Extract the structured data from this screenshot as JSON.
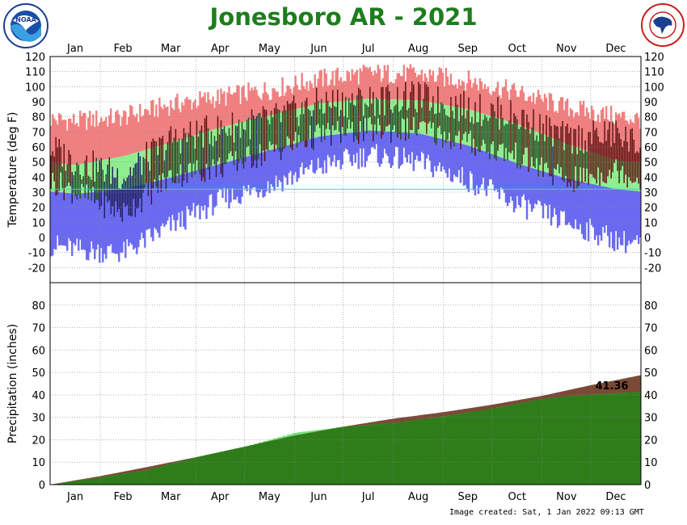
{
  "title": "Jonesboro AR - 2021",
  "footer": "Image created: Sat, 1 Jan 2022 09:13 GMT",
  "logos": {
    "noaa": {
      "text": "NOAA",
      "ring_text": "NATIONAL OCEANIC AND ATMOSPHERIC ADMINISTRATION"
    },
    "nws": {
      "ring_text": "NATIONAL WEATHER SERVICE"
    }
  },
  "colors": {
    "record_band": "#f08080",
    "normal_band": "#90ee90",
    "record_low_band": "#6a6af0",
    "observed": "#5a1010",
    "observed_normal": "#234a23",
    "observed_cold": "#22205a",
    "precip_observed": "#2e7d1a",
    "precip_normal": "#7a4a36",
    "precip_above": "#7de07d",
    "title": "#1e7d1e",
    "freezing_line": "#40d0d0"
  },
  "chart_data": [
    {
      "type": "area",
      "ylabel": "Temperature (deg F)",
      "ylim": [
        -30,
        120
      ],
      "yticks": [
        120,
        110,
        100,
        90,
        80,
        70,
        60,
        50,
        40,
        30,
        20,
        10,
        0,
        -10,
        -20
      ],
      "months": [
        "Jan",
        "Feb",
        "Mar",
        "Apr",
        "May",
        "Jun",
        "Jul",
        "Aug",
        "Sep",
        "Oct",
        "Nov",
        "Dec"
      ],
      "grid": true,
      "monthly_normal_high": [
        48,
        54,
        63,
        73,
        81,
        89,
        92,
        91,
        85,
        75,
        62,
        51
      ],
      "monthly_normal_low": [
        29,
        32,
        40,
        49,
        58,
        67,
        71,
        69,
        61,
        49,
        39,
        32
      ],
      "monthly_record_high": [
        77,
        80,
        88,
        93,
        98,
        105,
        109,
        108,
        104,
        96,
        86,
        80
      ],
      "monthly_record_low": [
        -8,
        -10,
        8,
        25,
        35,
        47,
        55,
        50,
        38,
        22,
        10,
        -2
      ],
      "monthly_observed_high": [
        50,
        41,
        65,
        72,
        78,
        89,
        91,
        93,
        86,
        80,
        65,
        69
      ],
      "monthly_observed_low": [
        30,
        16,
        41,
        47,
        57,
        68,
        71,
        72,
        63,
        54,
        37,
        45
      ],
      "annotation": "",
      "series": [
        {
          "name": "",
          "key": "record_band"
        },
        {
          "name": "",
          "key": "normal_band"
        },
        {
          "name": "",
          "key": "observed"
        }
      ]
    },
    {
      "type": "area",
      "ylabel": "Precipitation (inches)",
      "ylim": [
        0,
        90
      ],
      "yticks": [
        80,
        70,
        60,
        50,
        40,
        30,
        20,
        10,
        0
      ],
      "months": [
        "Jan",
        "Feb",
        "Mar",
        "Apr",
        "May",
        "Jun",
        "Jul",
        "Aug",
        "Sep",
        "Oct",
        "Nov",
        "Dec"
      ],
      "grid": true,
      "cumulative_observed_month_end": [
        3.3,
        6.5,
        12.3,
        17.0,
        23.2,
        25.8,
        27.5,
        30.5,
        34.0,
        38.3,
        40.2,
        41.36
      ],
      "cumulative_normal_month_end": [
        3.8,
        7.7,
        12.2,
        16.9,
        21.9,
        25.8,
        29.4,
        32.3,
        35.6,
        39.6,
        44.3,
        48.8
      ],
      "annotation": "41.36"
    }
  ]
}
